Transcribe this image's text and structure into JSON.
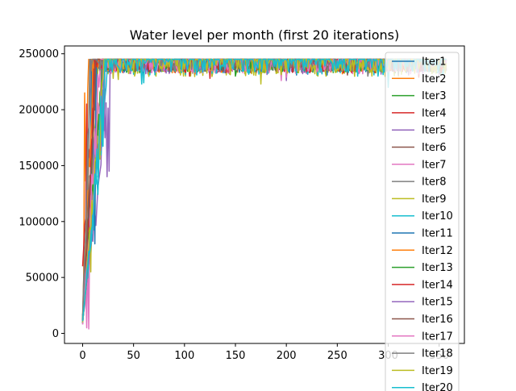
{
  "chart_data": {
    "type": "line",
    "title": "Water level per month (first 20 iterations)",
    "xlabel": "",
    "ylabel": "",
    "xlim": [
      -17.8,
      374.8
    ],
    "ylim": [
      -9000,
      257000
    ],
    "xticks": [
      0,
      50,
      100,
      150,
      200,
      250,
      300,
      350
    ],
    "yticks": [
      0,
      50000,
      100000,
      150000,
      200000,
      250000
    ],
    "x_tick_labels": [
      "0",
      "50",
      "100",
      "150",
      "200",
      "250",
      "300",
      "350"
    ],
    "y_tick_labels": [
      "0",
      "50000",
      "100000",
      "150000",
      "200000",
      "250000"
    ],
    "grid": false,
    "legend_position": "right",
    "months": 358,
    "cap": 245000,
    "series": [
      {
        "name": "Iter1",
        "color": "#1f77b4",
        "start": 12000,
        "fill_month": 9,
        "dip_min": 234000,
        "dips": [
          [
            60,
            232000
          ],
          [
            140,
            233000
          ],
          [
            210,
            231000
          ]
        ]
      },
      {
        "name": "Iter2",
        "color": "#ff7f0e",
        "start": 15000,
        "fill_month": 6,
        "dip_min": 233000,
        "dips": [
          [
            2,
            215000
          ],
          [
            5,
            218000
          ],
          [
            95,
            233000
          ],
          [
            255,
            232000
          ]
        ]
      },
      {
        "name": "Iter3",
        "color": "#2ca02c",
        "start": 9000,
        "fill_month": 20,
        "dip_min": 232000,
        "dips": [
          [
            12,
            120000
          ],
          [
            170,
            232000
          ],
          [
            330,
            230000
          ]
        ]
      },
      {
        "name": "Iter4",
        "color": "#d62728",
        "start": 60000,
        "fill_month": 11,
        "dip_min": 233000,
        "dips": [
          [
            4,
            205000
          ],
          [
            9,
            150000
          ],
          [
            125,
            228000
          ],
          [
            330,
            229000
          ]
        ]
      },
      {
        "name": "Iter5",
        "color": "#9467bd",
        "start": 10000,
        "fill_month": 27,
        "dip_min": 231000,
        "dips": [
          [
            24,
            140000
          ],
          [
            26,
            145000
          ],
          [
            200,
            226000
          ]
        ]
      },
      {
        "name": "Iter6",
        "color": "#8c564b",
        "start": 11000,
        "fill_month": 14,
        "dip_min": 234000,
        "dips": [
          [
            5,
            160000
          ],
          [
            175,
            231000
          ]
        ]
      },
      {
        "name": "Iter7",
        "color": "#e377c2",
        "start": 8000,
        "fill_month": 18,
        "dip_min": 232000,
        "dips": [
          [
            4,
            5000
          ],
          [
            6,
            4000
          ],
          [
            195,
            226000
          ],
          [
            330,
            232000
          ]
        ]
      },
      {
        "name": "Iter8",
        "color": "#7f7f7f",
        "start": 14000,
        "fill_month": 7,
        "dip_min": 234000,
        "dips": [
          [
            280,
            230000
          ]
        ]
      },
      {
        "name": "Iter9",
        "color": "#bcbd22",
        "start": 13000,
        "fill_month": 16,
        "dip_min": 229000,
        "dips": [
          [
            8,
            55000
          ],
          [
            30,
            228000
          ],
          [
            175,
            223000
          ]
        ]
      },
      {
        "name": "Iter10",
        "color": "#17becf",
        "start": 10000,
        "fill_month": 24,
        "dip_min": 231000,
        "dips": [
          [
            60,
            224000
          ],
          [
            270,
            230000
          ],
          [
            300,
            220000
          ]
        ]
      },
      {
        "name": "Iter11",
        "color": "#1f77b4",
        "start": 16000,
        "fill_month": 15,
        "dip_min": 233000,
        "dips": [
          [
            12,
            80000
          ],
          [
            240,
            231000
          ]
        ]
      },
      {
        "name": "Iter12",
        "color": "#ff7f0e",
        "start": 12000,
        "fill_month": 10,
        "dip_min": 234000,
        "dips": [
          [
            110,
            232000
          ]
        ]
      },
      {
        "name": "Iter13",
        "color": "#2ca02c",
        "start": 9000,
        "fill_month": 19,
        "dip_min": 233000,
        "dips": [
          [
            150,
            230000
          ]
        ]
      },
      {
        "name": "Iter14",
        "color": "#d62728",
        "start": 11000,
        "fill_month": 12,
        "dip_min": 233000,
        "dips": [
          [
            105,
            230000
          ]
        ]
      },
      {
        "name": "Iter15",
        "color": "#9467bd",
        "start": 10000,
        "fill_month": 22,
        "dip_min": 234000,
        "dips": [
          [
            320,
            231000
          ]
        ]
      },
      {
        "name": "Iter16",
        "color": "#8c564b",
        "start": 12000,
        "fill_month": 13,
        "dip_min": 234000,
        "dips": [
          [
            260,
            231000
          ]
        ]
      },
      {
        "name": "Iter17",
        "color": "#e377c2",
        "start": 8000,
        "fill_month": 17,
        "dip_min": 233000,
        "dips": [
          [
            200,
            229000
          ]
        ]
      },
      {
        "name": "Iter18",
        "color": "#7f7f7f",
        "start": 13000,
        "fill_month": 8,
        "dip_min": 234000,
        "dips": [
          [
            310,
            231000
          ]
        ]
      },
      {
        "name": "Iter19",
        "color": "#bcbd22",
        "start": 10000,
        "fill_month": 21,
        "dip_min": 232000,
        "dips": [
          [
            35,
            227000
          ]
        ]
      },
      {
        "name": "Iter20",
        "color": "#17becf",
        "start": 11000,
        "fill_month": 23,
        "dip_min": 233000,
        "dips": [
          [
            58,
            223000
          ],
          [
            290,
            230000
          ]
        ]
      }
    ]
  }
}
